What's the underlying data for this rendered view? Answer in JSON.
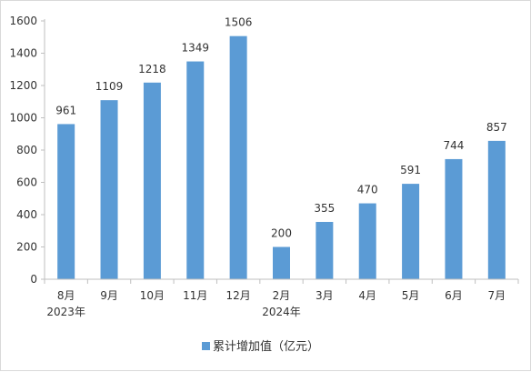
{
  "chart_data": {
    "type": "bar",
    "categories": [
      "8月",
      "9月",
      "10月",
      "11月",
      "12月",
      "2月",
      "3月",
      "4月",
      "5月",
      "6月",
      "7月"
    ],
    "category_sublabels": [
      "2023年",
      "",
      "",
      "",
      "",
      "2024年",
      "",
      "",
      "",
      "",
      ""
    ],
    "series": [
      {
        "name": "累计增加值（亿元）",
        "values": [
          961,
          1109,
          1218,
          1349,
          1506,
          200,
          355,
          470,
          591,
          744,
          857
        ],
        "color": "#5b9bd5"
      }
    ],
    "yticks": [
      0,
      200,
      400,
      600,
      800,
      1000,
      1200,
      1400,
      1600
    ],
    "ylim": [
      0,
      1600
    ],
    "title": "",
    "xlabel": "",
    "ylabel": "",
    "grid": false,
    "legend_position": "bottom",
    "data_labels": true
  }
}
